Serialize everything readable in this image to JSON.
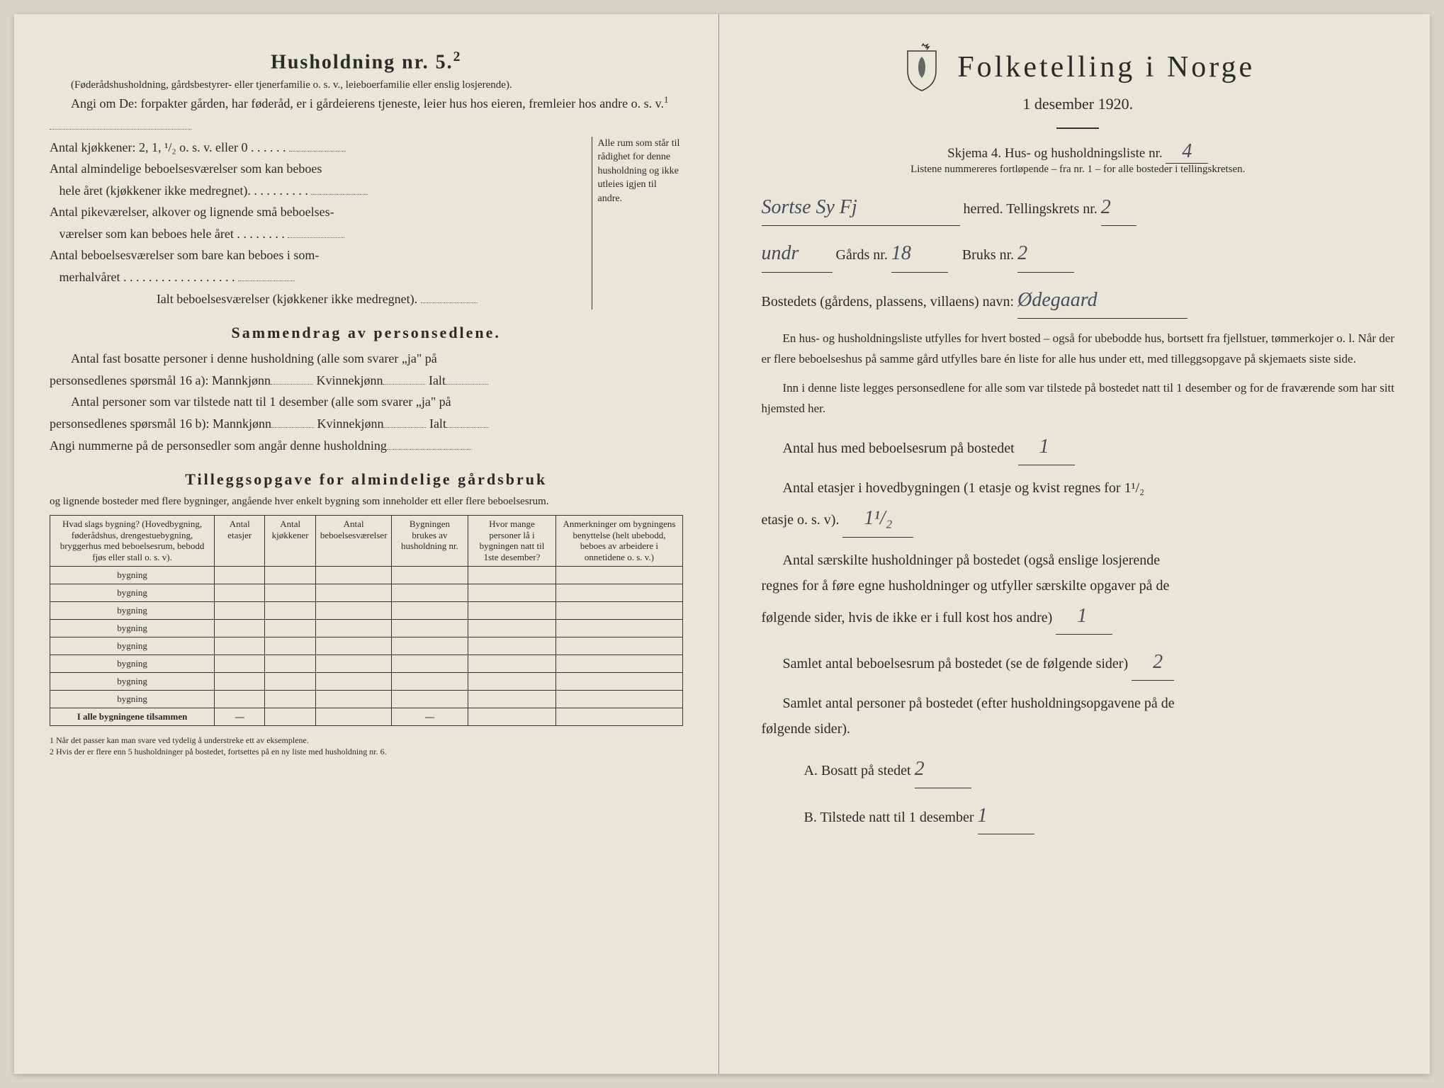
{
  "left": {
    "h5_title": "Husholdning nr. 5.",
    "h5_sup": "2",
    "h5_desc": "(Føderådshusholdning, gårdsbestyrer- eller tjenerfamilie o. s. v., leieboerfamilie eller enslig losjerende).",
    "h5_angi": "Angi om De: forpakter gården, har føderåd, er i gårdeierens tjeneste, leier hus hos eieren, fremleier hos andre o. s. v.",
    "h5_sup1": "1",
    "kjokkener": "Antal kjøkkener: 2, 1, ¹/₂ o. s. v. eller 0",
    "almindelige1": "Antal almindelige beboelsesværelser som kan beboes",
    "almindelige2": "hele året (kjøkkener ikke medregnet).",
    "pike1": "Antal pikeværelser, alkover og lignende små beboelses-",
    "pike2": "værelser som kan beboes hele året",
    "sommer1": "Antal beboelsesværelser som bare kan beboes i som-",
    "sommer2": "merhalvåret",
    "ialt": "Ialt beboelsesværelser (kjøkkener ikke medregnet).",
    "bracket_text": "Alle rum som står til rådighet for denne husholdning og ikke utleies igjen til andre.",
    "sammendrag_title": "Sammendrag av personsedlene.",
    "fast1": "Antal fast bosatte personer i denne husholdning (alle som svarer „ja\" på",
    "fast2": "personsedlenes spørsmål 16 a): Mannkjønn",
    "kvinne": "Kvinnekjønn",
    "ialt_label": "Ialt",
    "tilstede1": "Antal personer som var tilstede natt til 1 desember (alle som svarer „ja\" på",
    "tilstede2": "personsedlenes spørsmål 16 b): Mannkjønn",
    "nummerne": "Angi nummerne på de personsedler som angår denne husholdning",
    "tillegg_title": "Tilleggsopgave for almindelige gårdsbruk",
    "tillegg_desc": "og lignende bosteder med flere bygninger, angående hver enkelt bygning som inneholder ett eller flere beboelsesrum.",
    "table": {
      "headers": [
        "Hvad slags bygning?\n(Hovedbygning, føderådshus, drengestuebygning, bryggerhus med beboelsesrum, bebodd fjøs eller stall o. s. v).",
        "Antal etasjer",
        "Antal kjøkkener",
        "Antal beboelsesværelser",
        "Bygningen brukes av husholdning nr.",
        "Hvor mange personer lå i bygningen natt til 1ste desember?",
        "Anmerkninger om bygningens benyttelse (helt ubebodd, beboes av arbeidere i onnetidene o. s. v.)"
      ],
      "row_label": "bygning",
      "total_label": "I alle bygningene tilsammen",
      "dash": "—"
    },
    "footnote1": "1  Når det passer kan man svare ved tydelig å understreke ett av eksemplene.",
    "footnote2": "2  Hvis der er flere enn 5 husholdninger på bostedet, fortsettes på en ny liste med husholdning nr. 6."
  },
  "right": {
    "main_title": "Folketelling i Norge",
    "subtitle": "1 desember 1920.",
    "skjema": "Skjema 4.  Hus- og husholdningsliste nr.",
    "skjema_val": "4",
    "listene": "Listene nummereres fortløpende – fra nr. 1 – for alle bosteder i tellingskretsen.",
    "herred_hw": "Sortse  Sy Fj",
    "herred": "herred.   Tellingskrets nr.",
    "krets_val": "2",
    "undr_hw": "undr",
    "gards": "Gårds nr.",
    "gards_val": "18",
    "bruks": "Bruks nr.",
    "bruks_val": "2",
    "bosted": "Bostedets (gårdens, plassens, villaens) navn:",
    "bosted_val": "Ødegaard",
    "para1": "En hus- og husholdningsliste utfylles for hvert bosted – også for ubebodde hus, bortsett fra fjellstuer, tømmerkojer o. l. Når der er flere beboelseshus på samme gård utfylles bare én liste for alle hus under ett, med tilleggsopgave på skjemaets siste side.",
    "para2": "Inn i denne liste legges personsedlene for alle som var tilstede på bostedet natt til 1 desember og for de fraværende som har sitt hjemsted her.",
    "antal_hus": "Antal hus med beboelsesrum på bostedet",
    "antal_hus_val": "1",
    "etasjer1": "Antal etasjer i hovedbygningen (1 etasje og kvist regnes for 1¹/₂",
    "etasjer2": "etasje o. s. v).",
    "etasjer_val": "1¹/₂",
    "saerskilte1": "Antal særskilte husholdninger på bostedet (også enslige losjerende",
    "saerskilte2": "regnes for å føre egne husholdninger og utfyller særskilte opgaver på de",
    "saerskilte3": "følgende sider, hvis de ikke er i full kost hos andre)",
    "saerskilte_val": "1",
    "samlet_rum": "Samlet antal beboelsesrum på bostedet (se de følgende sider)",
    "samlet_rum_val": "2",
    "samlet_pers1": "Samlet antal personer på bostedet (efter husholdningsopgavene på de",
    "samlet_pers2": "følgende sider).",
    "a_label": "A.  Bosatt på stedet",
    "a_val": "2",
    "b_label": "B.  Tilstede natt til 1 desember",
    "b_val": "1"
  }
}
